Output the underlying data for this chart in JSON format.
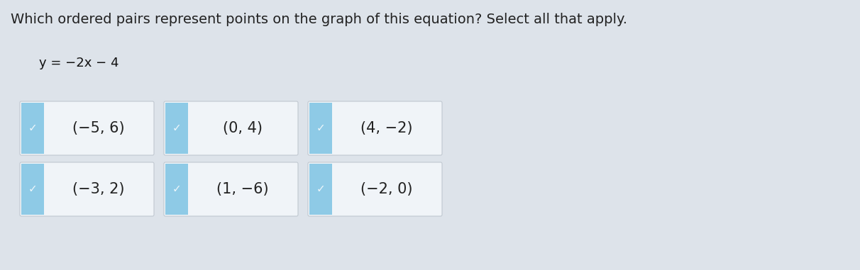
{
  "title": "Which ordered pairs represent points on the graph of this equation? Select all that apply.",
  "equation": "y = −2x − 4",
  "background_color": "#dde3ea",
  "box_bg": "#f0f4f8",
  "check_bg": "#8ecae6",
  "title_fontsize": 14,
  "eq_fontsize": 13,
  "pair_fontsize": 15,
  "items": [
    {
      "label": "(−5, 6)",
      "row": 0,
      "col": 0
    },
    {
      "label": "(0, 4)",
      "row": 0,
      "col": 1
    },
    {
      "label": "(4, −2)",
      "row": 0,
      "col": 2
    },
    {
      "label": "(−3, 2)",
      "row": 1,
      "col": 0
    },
    {
      "label": "(1, −6)",
      "row": 1,
      "col": 1
    },
    {
      "label": "(−2, 0)",
      "row": 1,
      "col": 2
    }
  ],
  "figsize": [
    12.12,
    3.81
  ],
  "dpi": 100
}
